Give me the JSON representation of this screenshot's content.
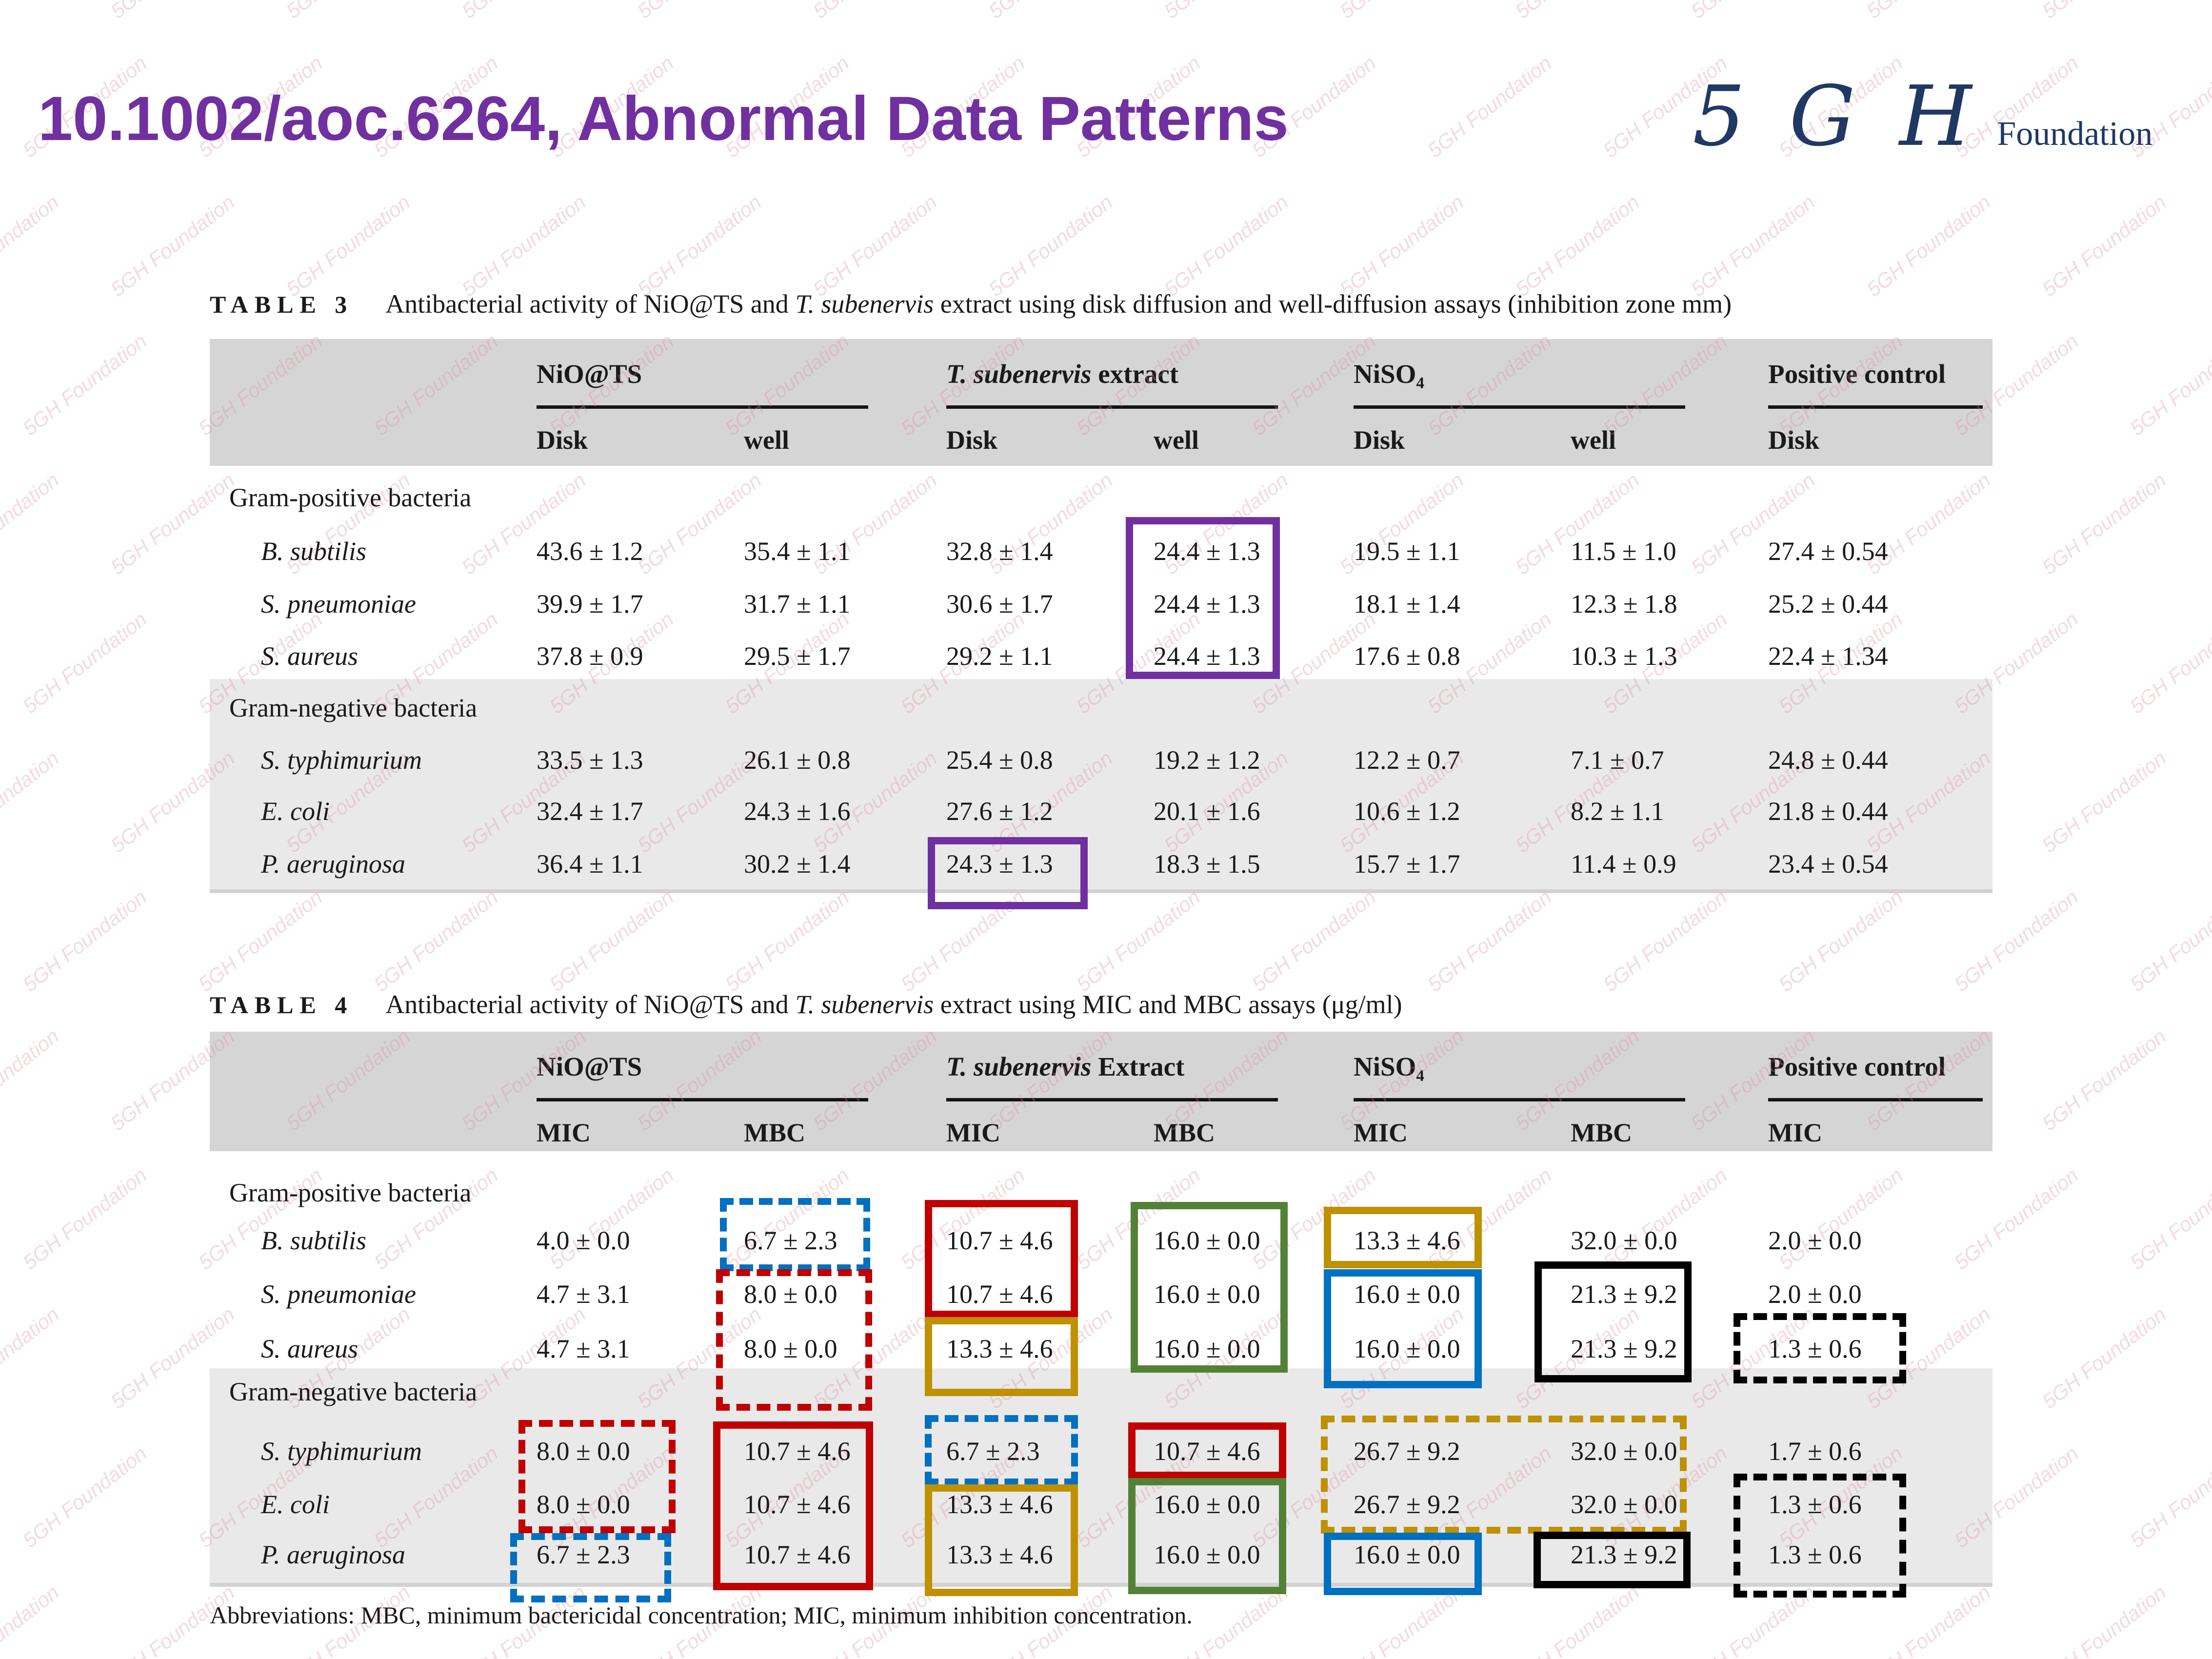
{
  "header": {
    "title": "10.1002/aoc.6264, Abnormal Data Patterns",
    "logo_monogram": "5 G H",
    "logo_word": "Foundation"
  },
  "watermark": {
    "text": "5GH Foundation"
  },
  "palette": {
    "title_purple": "#7030A0",
    "logo_navy": "#1F3864",
    "watermark_pink": "#D98C9C",
    "header_band_gray": "#D5D5D5",
    "section_gray": "#E9E9E9",
    "highlight_purple": "#7030A0",
    "highlight_red": "#C00000",
    "highlight_blue": "#0070C0",
    "highlight_gold": "#BF9000",
    "highlight_green": "#538135",
    "highlight_black": "#000000"
  },
  "table3": {
    "label": "TABLE 3",
    "caption": {
      "pre": "Antibacterial activity of NiO@TS and ",
      "italic": "T. subenervis",
      "post": " extract using disk diffusion and well-diffusion assays (inhibition zone mm)"
    },
    "groups": [
      {
        "name": "NiO@TS"
      },
      {
        "italic": "T. subenervis",
        "rest": " extract"
      },
      {
        "name": "NiSO₄"
      },
      {
        "name": "Positive control"
      }
    ],
    "sub_headers": [
      "Disk",
      "well",
      "Disk",
      "well",
      "Disk",
      "well",
      "Disk"
    ],
    "sections": [
      {
        "header": "Gram-positive bacteria",
        "rows": [
          {
            "species": "B. subtilis",
            "values": [
              "43.6 ± 1.2",
              "35.4 ± 1.1",
              "32.8 ± 1.4",
              "24.4 ± 1.3",
              "19.5 ± 1.1",
              "11.5 ± 1.0",
              "27.4 ± 0.54"
            ]
          },
          {
            "species": "S. pneumoniae",
            "values": [
              "39.9 ± 1.7",
              "31.7 ± 1.1",
              "30.6 ± 1.7",
              "24.4 ± 1.3",
              "18.1 ± 1.4",
              "12.3 ± 1.8",
              "25.2 ± 0.44"
            ]
          },
          {
            "species": "S. aureus",
            "values": [
              "37.8 ± 0.9",
              "29.5 ± 1.7",
              "29.2 ± 1.1",
              "24.4 ± 1.3",
              "17.6 ± 0.8",
              "10.3 ± 1.3",
              "22.4 ± 1.34"
            ]
          }
        ]
      },
      {
        "header": "Gram-negative bacteria",
        "rows": [
          {
            "species": "S. typhimurium",
            "values": [
              "33.5 ± 1.3",
              "26.1 ± 0.8",
              "25.4 ± 0.8",
              "19.2 ± 1.2",
              "12.2 ± 0.7",
              "7.1 ± 0.7",
              "24.8 ± 0.44"
            ]
          },
          {
            "species": "E. coli",
            "values": [
              "32.4 ± 1.7",
              "24.3 ± 1.6",
              "27.6 ± 1.2",
              "20.1 ± 1.6",
              "10.6 ± 1.2",
              "8.2 ± 1.1",
              "21.8 ± 0.44"
            ]
          },
          {
            "species": "P. aeruginosa",
            "values": [
              "36.4 ± 1.1",
              "30.2 ± 1.4",
              "24.3 ± 1.3",
              "18.3 ± 1.5",
              "15.7 ± 1.7",
              "11.4 ± 0.9",
              "23.4 ± 0.54"
            ]
          }
        ]
      }
    ]
  },
  "table4": {
    "label": "TABLE 4",
    "caption": {
      "pre": "Antibacterial activity of NiO@TS and ",
      "italic": "T. subenervis",
      "post": " extract using MIC and MBC assays (μg/ml)"
    },
    "groups": [
      {
        "name": "NiO@TS"
      },
      {
        "italic": "T. subenervis",
        "rest": " Extract"
      },
      {
        "name": "NiSO₄"
      },
      {
        "name": "Positive control"
      }
    ],
    "sub_headers": [
      "MIC",
      "MBC",
      "MIC",
      "MBC",
      "MIC",
      "MBC",
      "MIC"
    ],
    "sections": [
      {
        "header": "Gram-positive bacteria",
        "rows": [
          {
            "species": "B. subtilis",
            "values": [
              "4.0 ± 0.0",
              "6.7 ± 2.3",
              "10.7 ± 4.6",
              "16.0 ± 0.0",
              "13.3 ± 4.6",
              "32.0 ± 0.0",
              "2.0 ± 0.0"
            ]
          },
          {
            "species": "S. pneumoniae",
            "values": [
              "4.7 ± 3.1",
              "8.0 ± 0.0",
              "10.7 ± 4.6",
              "16.0 ± 0.0",
              "16.0 ± 0.0",
              "21.3 ± 9.2",
              "2.0 ± 0.0"
            ]
          },
          {
            "species": "S. aureus",
            "values": [
              "4.7 ± 3.1",
              "8.0 ± 0.0",
              "13.3 ± 4.6",
              "16.0 ± 0.0",
              "16.0 ± 0.0",
              "21.3 ± 9.2",
              "1.3 ± 0.6"
            ]
          }
        ]
      },
      {
        "header": "Gram-negative bacteria",
        "rows": [
          {
            "species": "S. typhimurium",
            "values": [
              "8.0 ± 0.0",
              "10.7 ± 4.6",
              "6.7 ± 2.3",
              "10.7 ± 4.6",
              "26.7 ± 9.2",
              "32.0 ± 0.0",
              "1.7 ± 0.6"
            ]
          },
          {
            "species": "E. coli",
            "values": [
              "8.0 ± 0.0",
              "10.7 ± 4.6",
              "13.3 ± 4.6",
              "16.0 ± 0.0",
              "26.7 ± 9.2",
              "32.0 ± 0.0",
              "1.3 ± 0.6"
            ]
          },
          {
            "species": "P. aeruginosa",
            "values": [
              "6.7 ± 2.3",
              "10.7 ± 4.6",
              "13.3 ± 4.6",
              "16.0 ± 0.0",
              "16.0 ± 0.0",
              "21.3 ± 9.2",
              "1.3 ± 0.6"
            ]
          }
        ]
      }
    ]
  },
  "footer": "Abbreviations: MBC, minimum bactericidal concentration; MIC, minimum inhibition concentration.",
  "highlights": [
    {
      "table": "table3",
      "style": "solid",
      "color": "#7030A0",
      "around": "T. subenervis well column 24.4 ± 1.3 (B. subtilis, S. pneumoniae, S. aureus)"
    },
    {
      "table": "table3",
      "style": "solid",
      "color": "#7030A0",
      "around": "T. subenervis Disk 24.3 ± 1.3 (P. aeruginosa)"
    },
    {
      "table": "table4",
      "style": "dashed",
      "color": "#0070C0",
      "around": "NiO@TS MBC 6.7 ± 2.3 (B. subtilis)"
    },
    {
      "table": "table4",
      "style": "dashed",
      "color": "#C00000",
      "around": "NiO@TS MBC 8.0 ± 0.0 (S. pneumoniae, S. aureus)"
    },
    {
      "table": "table4",
      "style": "solid",
      "color": "#C00000",
      "around": "T. subenervis MIC 10.7 ± 4.6 (B. subtilis, S. pneumoniae)"
    },
    {
      "table": "table4",
      "style": "solid",
      "color": "#BF9000",
      "around": "T. subenervis MIC 13.3 ± 4.6 (S. aureus)"
    },
    {
      "table": "table4",
      "style": "solid",
      "color": "#538135",
      "around": "T. subenervis MBC 16.0 ± 0.0 (B. subtilis, S. pneumoniae, S. aureus)"
    },
    {
      "table": "table4",
      "style": "solid",
      "color": "#BF9000",
      "around": "NiSO₄ MIC 13.3 ± 4.6 (B. subtilis)"
    },
    {
      "table": "table4",
      "style": "solid",
      "color": "#0070C0",
      "around": "NiSO₄ MIC 16.0 ± 0.0 (S. pneumoniae, S. aureus)"
    },
    {
      "table": "table4",
      "style": "solid",
      "color": "#000000",
      "around": "NiSO₄ MBC 21.3 ± 9.2 (S. pneumoniae, S. aureus)"
    },
    {
      "table": "table4",
      "style": "dashed",
      "color": "#000000",
      "around": "Positive control MIC 1.3 ± 0.6 (S. aureus)"
    },
    {
      "table": "table4",
      "style": "dashed",
      "color": "#C00000",
      "around": "NiO@TS MIC 8.0 ± 0.0 (S. typhimurium, E. coli)"
    },
    {
      "table": "table4",
      "style": "dashed",
      "color": "#0070C0",
      "around": "NiO@TS MIC 6.7 ± 2.3 (P. aeruginosa)"
    },
    {
      "table": "table4",
      "style": "solid",
      "color": "#C00000",
      "around": "NiO@TS MBC 10.7 ± 4.6 (S. typhimurium, E. coli, P. aeruginosa)"
    },
    {
      "table": "table4",
      "style": "dashed",
      "color": "#0070C0",
      "around": "T. subenervis MIC 6.7 ± 2.3 (S. typhimurium)"
    },
    {
      "table": "table4",
      "style": "solid",
      "color": "#BF9000",
      "around": "T. subenervis MIC 13.3 ± 4.6 (E. coli, P. aeruginosa)"
    },
    {
      "table": "table4",
      "style": "solid",
      "color": "#C00000",
      "around": "T. subenervis MBC 10.7 ± 4.6 (S. typhimurium)"
    },
    {
      "table": "table4",
      "style": "solid",
      "color": "#538135",
      "around": "T. subenervis MBC 16.0 ± 0.0 (E. coli, P. aeruginosa)"
    },
    {
      "table": "table4",
      "style": "dashed",
      "color": "#BF9000",
      "around": "NiSO₄ MIC and MBC 26.7 ± 9.2 / 32.0 ± 0.0 (S. typhimurium, E. coli)"
    },
    {
      "table": "table4",
      "style": "solid",
      "color": "#0070C0",
      "around": "NiSO₄ MIC 16.0 ± 0.0 (P. aeruginosa)"
    },
    {
      "table": "table4",
      "style": "solid",
      "color": "#000000",
      "around": "NiSO₄ MBC 21.3 ± 9.2 (P. aeruginosa)"
    },
    {
      "table": "table4",
      "style": "dashed",
      "color": "#000000",
      "around": "Positive control MIC 1.3 ± 0.6 (E. coli, P. aeruginosa)"
    }
  ]
}
